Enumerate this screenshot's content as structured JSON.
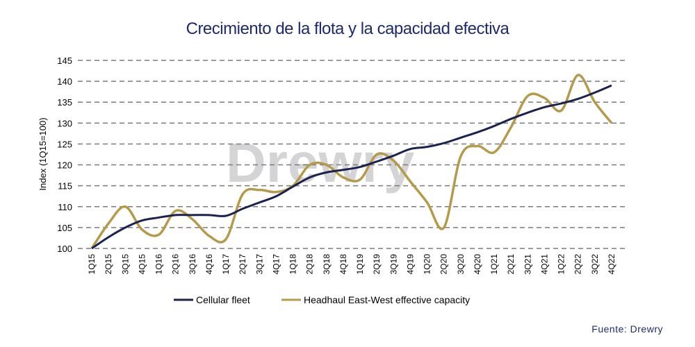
{
  "chart_data": {
    "type": "line",
    "title": "Crecimiento de la flota y la capacidad efectiva",
    "ylabel": "Index (1Q15=100)",
    "xlabel": "",
    "ylim": [
      100,
      145
    ],
    "yticks": [
      100,
      105,
      110,
      115,
      120,
      125,
      130,
      135,
      140,
      145
    ],
    "grid": true,
    "legend": "bottom",
    "categories": [
      "1Q15",
      "2Q15",
      "3Q15",
      "4Q15",
      "1Q16",
      "2Q16",
      "3Q16",
      "4Q16",
      "1Q17",
      "2Q17",
      "3Q17",
      "4Q17",
      "1Q18",
      "2Q18",
      "3Q18",
      "4Q18",
      "1Q19",
      "2Q19",
      "3Q19",
      "4Q19",
      "1Q20",
      "2Q20",
      "3Q20",
      "4Q20",
      "1Q21",
      "2Q21",
      "3Q21",
      "4Q21",
      "1Q22",
      "2Q22",
      "3Q22",
      "4Q22"
    ],
    "series": [
      {
        "name": "Cellular fleet",
        "color": "#1b2150",
        "values": [
          100,
          102.7,
          105,
          106.7,
          107.4,
          108,
          108,
          108,
          107.8,
          109.5,
          111,
          112.5,
          114.8,
          117,
          118.2,
          118.8,
          119.5,
          120.8,
          122.2,
          123.8,
          124.3,
          125.2,
          126.5,
          127.8,
          129.3,
          131,
          132.5,
          133.8,
          134.7,
          135.8,
          137.3,
          139
        ]
      },
      {
        "name": "Headhaul East-West effective capacity",
        "color": "#b59a4a",
        "values": [
          100,
          106,
          110,
          104.5,
          103.3,
          109,
          107,
          103,
          102.2,
          113,
          114,
          113.5,
          115,
          120,
          120,
          117,
          116.5,
          122.5,
          121,
          116,
          111,
          105,
          122,
          124.5,
          123,
          129,
          136.5,
          136,
          133,
          141.5,
          135,
          130
        ]
      }
    ]
  },
  "watermark": "Drewry",
  "source": "Fuente:  Drewry"
}
